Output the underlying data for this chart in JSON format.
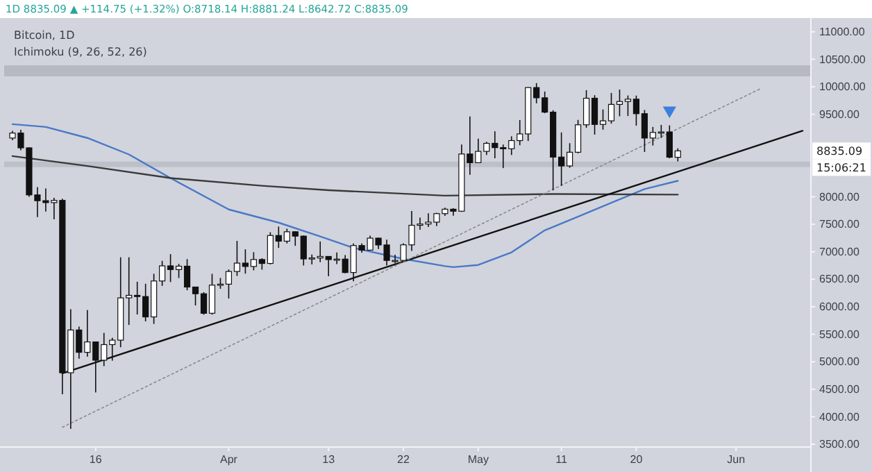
{
  "chart_data": {
    "type": "candlestick",
    "title": "Bitcoin, 1D",
    "subtitle": "Ichimoku (9, 26, 52, 26)",
    "annotations": [
      "1D  8835.09 ▲ +114.75 (+1.32%)  O:8718.14  H:8881.24  L:8642.72  C:8835.09",
      "8835.09",
      "15:06:21"
    ],
    "x": [
      "--03-06",
      "--03-07",
      "--03-08",
      "--03-09",
      "--03-10",
      "--03-11",
      "--03-12",
      "--03-13",
      "--03-14",
      "--03-15",
      "--03-16",
      "--03-17",
      "--03-18",
      "--03-19",
      "--03-20",
      "--03-21",
      "--03-22",
      "--03-23",
      "--03-24",
      "--03-25",
      "--03-26",
      "--03-27",
      "--03-28",
      "--03-29",
      "--03-30",
      "--03-31",
      "--04-01",
      "--04-02",
      "--04-03",
      "--04-04",
      "--04-05",
      "--04-06",
      "--04-07",
      "--04-08",
      "--04-09",
      "--04-10",
      "--04-11",
      "--04-12",
      "--04-13",
      "--04-14",
      "--04-15",
      "--04-16",
      "--04-17",
      "--04-18",
      "--04-19",
      "--04-20",
      "--04-21",
      "--04-22",
      "--04-23",
      "--04-24",
      "--04-25",
      "--04-26",
      "--04-27",
      "--04-28",
      "--04-29",
      "--04-30",
      "--05-01",
      "--05-02",
      "--05-03",
      "--05-04",
      "--05-05",
      "--05-06",
      "--05-07",
      "--05-08",
      "--05-09",
      "--05-10",
      "--05-11",
      "--05-12",
      "--05-13",
      "--05-14",
      "--05-15",
      "--05-16",
      "--05-17",
      "--05-18",
      "--05-19",
      "--05-20",
      "--05-21",
      "--05-22",
      "--05-23",
      "--05-24",
      "--05-25"
    ],
    "ohlc": [
      [
        9068,
        9198,
        9030,
        9158
      ],
      [
        9158,
        9217,
        8846,
        8890
      ],
      [
        8890,
        8900,
        8000,
        8034
      ],
      [
        8034,
        8177,
        7632,
        7929
      ],
      [
        7929,
        8150,
        7733,
        7894
      ],
      [
        7894,
        7980,
        7590,
        7934
      ],
      [
        7934,
        7966,
        4410,
        4800
      ],
      [
        4800,
        5955,
        3782,
        5578
      ],
      [
        5578,
        5640,
        5055,
        5172
      ],
      [
        5172,
        5940,
        5093,
        5361
      ],
      [
        5361,
        5365,
        4442,
        5028
      ],
      [
        5028,
        5525,
        4921,
        5312
      ],
      [
        5312,
        5436,
        5020,
        5393
      ],
      [
        5393,
        6900,
        5264,
        6162
      ],
      [
        6162,
        6900,
        5670,
        6208
      ],
      [
        6208,
        6456,
        5860,
        6186
      ],
      [
        6186,
        6418,
        5734,
        5816
      ],
      [
        5816,
        6600,
        5688,
        6469
      ],
      [
        6469,
        6835,
        6380,
        6744
      ],
      [
        6744,
        6957,
        6450,
        6677
      ],
      [
        6677,
        6780,
        6523,
        6738
      ],
      [
        6738,
        6867,
        6300,
        6359
      ],
      [
        6359,
        6360,
        6024,
        6237
      ],
      [
        6237,
        6265,
        5857,
        5882
      ],
      [
        5882,
        6599,
        5857,
        6394
      ],
      [
        6394,
        6525,
        6327,
        6411
      ],
      [
        6411,
        6679,
        6150,
        6642
      ],
      [
        6642,
        7198,
        6561,
        6794
      ],
      [
        6794,
        7045,
        6602,
        6733
      ],
      [
        6733,
        6993,
        6663,
        6859
      ],
      [
        6859,
        6882,
        6676,
        6788
      ],
      [
        6788,
        7355,
        6771,
        7296
      ],
      [
        7296,
        7459,
        7070,
        7193
      ],
      [
        7193,
        7420,
        7151,
        7364
      ],
      [
        7364,
        7371,
        7108,
        7285
      ],
      [
        7285,
        7295,
        6751,
        6870
      ],
      [
        6870,
        6950,
        6770,
        6888
      ],
      [
        6888,
        7187,
        6811,
        6915
      ],
      [
        6915,
        6915,
        6555,
        6858
      ],
      [
        6858,
        6988,
        6777,
        6867
      ],
      [
        6867,
        6940,
        6610,
        6623
      ],
      [
        6623,
        7150,
        6463,
        7113
      ],
      [
        7113,
        7150,
        6983,
        7030
      ],
      [
        7030,
        7293,
        7022,
        7248
      ],
      [
        7248,
        7258,
        7050,
        7124
      ],
      [
        7124,
        7220,
        6752,
        6843
      ],
      [
        6843,
        6945,
        6791,
        6843
      ],
      [
        6843,
        7155,
        6825,
        7126
      ],
      [
        7126,
        7740,
        7015,
        7482
      ],
      [
        7482,
        7620,
        7400,
        7505
      ],
      [
        7505,
        7700,
        7451,
        7539
      ],
      [
        7539,
        7709,
        7466,
        7694
      ],
      [
        7694,
        7800,
        7652,
        7774
      ],
      [
        7774,
        7792,
        7657,
        7738
      ],
      [
        7738,
        8950,
        7727,
        8778
      ],
      [
        8778,
        9460,
        8401,
        8620
      ],
      [
        8620,
        9058,
        8620,
        8826
      ],
      [
        8826,
        9000,
        8760,
        8972
      ],
      [
        8972,
        9191,
        8700,
        8894
      ],
      [
        8894,
        8950,
        8522,
        8873
      ],
      [
        8873,
        9100,
        8760,
        9022
      ],
      [
        9022,
        9395,
        8937,
        9143
      ],
      [
        9143,
        9990,
        9015,
        9986
      ],
      [
        9986,
        10067,
        9700,
        9800
      ],
      [
        9800,
        9914,
        9520,
        9539
      ],
      [
        9539,
        9574,
        8117,
        8722
      ],
      [
        8722,
        9170,
        8200,
        8561
      ],
      [
        8561,
        8975,
        8528,
        8810
      ],
      [
        8810,
        9398,
        8790,
        9309
      ],
      [
        9309,
        9939,
        9256,
        9792
      ],
      [
        9792,
        9847,
        9130,
        9316
      ],
      [
        9316,
        9588,
        9220,
        9381
      ],
      [
        9381,
        9888,
        9330,
        9680
      ],
      [
        9680,
        9950,
        9464,
        9733
      ],
      [
        9733,
        9842,
        9469,
        9775
      ],
      [
        9775,
        9840,
        9293,
        9511
      ],
      [
        9511,
        9578,
        8815,
        9068
      ],
      [
        9068,
        9270,
        8933,
        9170
      ],
      [
        9170,
        9307,
        9070,
        9179
      ],
      [
        9179,
        9298,
        8700,
        8720
      ],
      [
        8718.14,
        8881.24,
        8642.72,
        8835.09
      ]
    ],
    "series": [
      {
        "type": "line",
        "color": "#4a78c8",
        "x": [
          "--03-06",
          "--03-10",
          "--03-15",
          "--03-20",
          "--03-25",
          "--04-01",
          "--04-07",
          "--04-12",
          "--04-16",
          "--04-22",
          "--04-27",
          "--04-28",
          "--05-01",
          "--05-05",
          "--05-09",
          "--05-13",
          "--05-17",
          "--05-21",
          "--05-25"
        ],
        "values": [
          9320,
          9270,
          9070,
          8770,
          8340,
          7770,
          7530,
          7280,
          7070,
          6870,
          6740,
          6720,
          6760,
          6990,
          7390,
          7640,
          7890,
          8140,
          8290
        ]
      },
      {
        "type": "line",
        "color": "#3a3a3a",
        "x": [
          "--03-06",
          "--03-15",
          "--03-25",
          "--04-05",
          "--04-13",
          "--04-27",
          "--05-10",
          "--05-25"
        ],
        "values": [
          8740,
          8560,
          8340,
          8200,
          8120,
          8020,
          8050,
          8040
        ]
      },
      {
        "type": "line",
        "color": "#111111",
        "x": [
          "--03-12",
          "--06-09"
        ],
        "values": [
          4790,
          9200
        ]
      },
      {
        "type": "line",
        "color": "#8a8a8a",
        "line_style": "dotted",
        "x": [
          "--03-12",
          "--06-04"
        ],
        "values": [
          3810,
          9970
        ]
      },
      {
        "type": "scatter",
        "marker": "triangle",
        "color": "#3d7fe0",
        "x": [
          "--05-24"
        ],
        "values": [
          9570
        ]
      }
    ],
    "bands": [
      {
        "axis": "y",
        "from": 10190,
        "to": 10390,
        "color": "#b6b9c2"
      },
      {
        "axis": "y",
        "from": 8540,
        "to": 8640,
        "color": "#bdc0c8"
      }
    ],
    "xlim": [
      "--03-05",
      "--06-10"
    ],
    "xticks": [
      {
        "value": "--03-16",
        "label": "16"
      },
      {
        "value": "--04-01",
        "label": "Apr"
      },
      {
        "value": "--04-13",
        "label": "13"
      },
      {
        "value": "--04-22",
        "label": "22"
      },
      {
        "value": "--05-01",
        "label": "May"
      },
      {
        "value": "--05-11",
        "label": "11"
      },
      {
        "value": "--05-20",
        "label": "20"
      },
      {
        "value": "--06-01",
        "label": "Jun"
      }
    ],
    "ylim": [
      3450,
      11250
    ],
    "yticks": [
      {
        "value": 3500,
        "label": "3500.00"
      },
      {
        "value": 4000,
        "label": "4000.00"
      },
      {
        "value": 4500,
        "label": "4500.00"
      },
      {
        "value": 5000,
        "label": "5000.00"
      },
      {
        "value": 5500,
        "label": "5500.00"
      },
      {
        "value": 6000,
        "label": "6000.00"
      },
      {
        "value": 6500,
        "label": "6500.00"
      },
      {
        "value": 7000,
        "label": "7000.00"
      },
      {
        "value": 7500,
        "label": "7500.00"
      },
      {
        "value": 8000,
        "label": "8000.00"
      },
      {
        "value": 9500,
        "label": "9500.00"
      },
      {
        "value": 10000,
        "label": "10000.00"
      },
      {
        "value": 10500,
        "label": "10500.00"
      },
      {
        "value": 11000,
        "label": "11000.00"
      }
    ]
  }
}
